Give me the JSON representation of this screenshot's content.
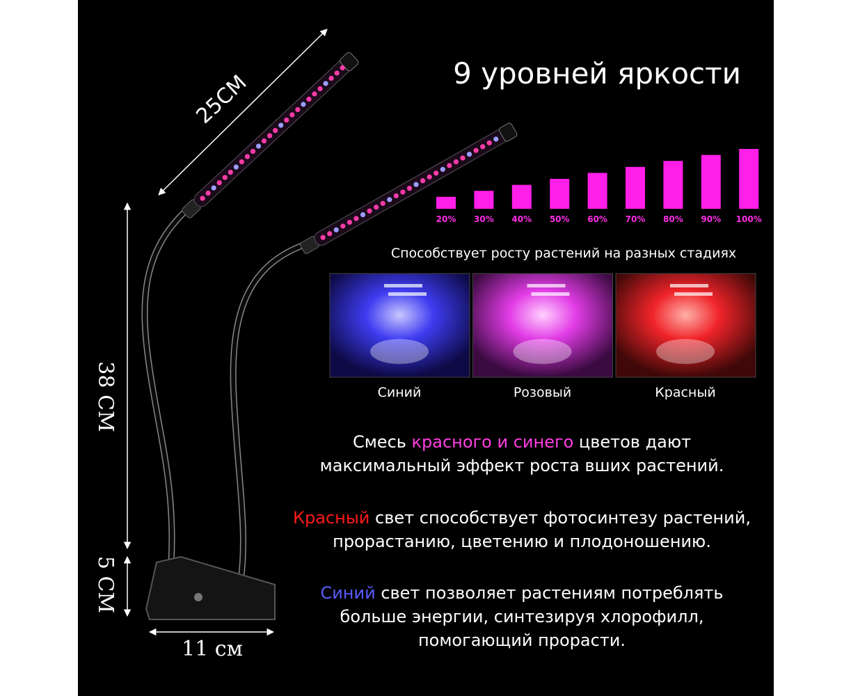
{
  "dimensions": {
    "length": "25СМ",
    "height": "38 СМ",
    "clip_height": "5 СМ",
    "clip_width": "11 см"
  },
  "brightness": {
    "title": "9 уровней яркости",
    "values": [
      20,
      30,
      40,
      50,
      60,
      70,
      80,
      90,
      100
    ],
    "value_labels": [
      "20%",
      "30%",
      "40%",
      "50%",
      "60%",
      "70%",
      "80%",
      "90%",
      "100%"
    ]
  },
  "stages": {
    "title": "Способствует росту растений на разных стадиях",
    "panels": [
      "Синий",
      "Розовый",
      "Красный"
    ]
  },
  "paragraphs": [
    [
      "Смесь ",
      "красного и синего",
      " цветов дают",
      "максимальный эффект роста вших растений."
    ],
    [
      "Красный",
      " свет способствует фотосинтезу растений,",
      "прорастанию, цветению и плодоношению."
    ],
    [
      "Синий",
      " свет позволяет растениям потреблять",
      "больше энергии, синтезируя хлорофилл,",
      "помогающий прорасти."
    ]
  ]
}
